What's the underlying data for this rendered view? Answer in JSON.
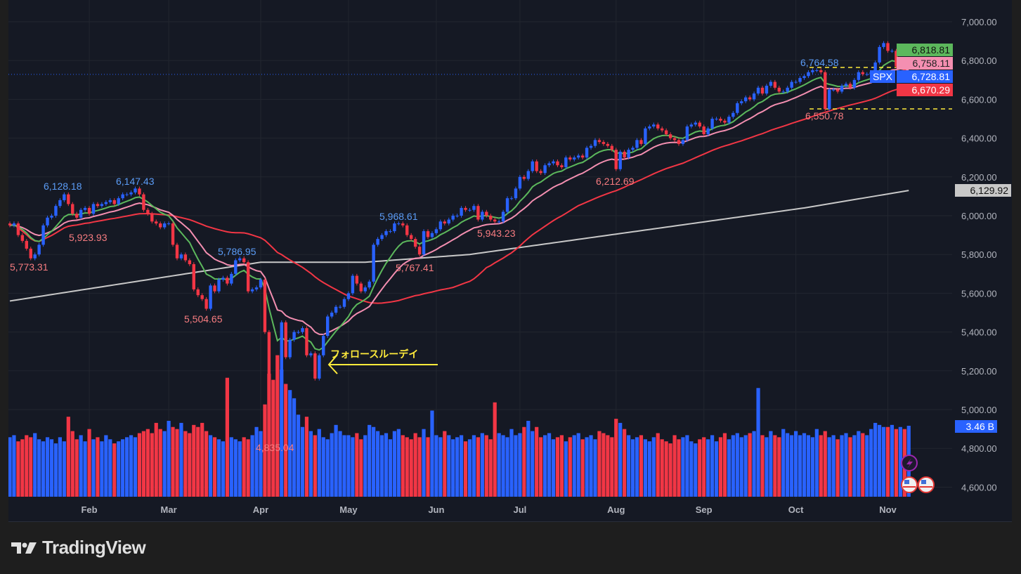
{
  "symbol": "SPX",
  "branding": {
    "logo_text": "TradingView"
  },
  "colors": {
    "up": "#2962ff",
    "down": "#f23645",
    "ema_fast": "#5cb85c",
    "ema_mid": "#f48fb1",
    "ma_mid": "#f23645",
    "ma_long": "#c8c8c8",
    "annotation": "#ffeb3b",
    "background": "#151924"
  },
  "chart_data": {
    "type": "candlestick",
    "price_axis": {
      "ylim": [
        4560,
        7080
      ],
      "ticks": [
        "7,000.00",
        "6,800.00",
        "6,600.00",
        "6,400.00",
        "6,200.00",
        "6,000.00",
        "5,800.00",
        "5,600.00",
        "5,400.00",
        "5,200.00",
        "5,000.00",
        "4,800.00",
        "4,600.00"
      ],
      "tick_values": [
        7000,
        6800,
        6600,
        6400,
        6200,
        6000,
        5800,
        5600,
        5400,
        5200,
        5000,
        4800,
        4600
      ]
    },
    "x_axis": {
      "months": [
        {
          "label": "Feb",
          "index": 19
        },
        {
          "label": "Mar",
          "index": 38
        },
        {
          "label": "Apr",
          "index": 60
        },
        {
          "label": "May",
          "index": 81
        },
        {
          "label": "Jun",
          "index": 102
        },
        {
          "label": "Jul",
          "index": 122
        },
        {
          "label": "Aug",
          "index": 145
        },
        {
          "label": "Sep",
          "index": 166
        },
        {
          "label": "Oct",
          "index": 188
        },
        {
          "label": "Nov",
          "index": 210
        }
      ]
    },
    "grid": true,
    "closes": [
      5950,
      5960,
      5900,
      5870,
      5830,
      5780,
      5800,
      5850,
      5950,
      5990,
      6000,
      6050,
      6080,
      6110,
      6060,
      6010,
      5990,
      6030,
      6040,
      6010,
      6060,
      6050,
      6060,
      6070,
      6080,
      6060,
      6090,
      6110,
      6110,
      6120,
      6140,
      6110,
      6030,
      6010,
      5970,
      5960,
      5940,
      5960,
      5960,
      5850,
      5780,
      5800,
      5770,
      5750,
      5620,
      5590,
      5570,
      5520,
      5640,
      5610,
      5670,
      5680,
      5650,
      5700,
      5770,
      5780,
      5760,
      5610,
      5620,
      5630,
      5670,
      5400,
      5070,
      5060,
      4980,
      5450,
      5270,
      5360,
      5400,
      5400,
      5420,
      5280,
      5290,
      5160,
      5280,
      5380,
      5480,
      5500,
      5530,
      5530,
      5570,
      5600,
      5690,
      5650,
      5610,
      5630,
      5660,
      5850,
      5880,
      5900,
      5920,
      5920,
      5960,
      5960,
      5950,
      5900,
      5880,
      5840,
      5800,
      5920,
      5890,
      5910,
      5930,
      5970,
      5960,
      5980,
      6000,
      6000,
      6040,
      6030,
      6030,
      6050,
      5980,
      6020,
      6000,
      5980,
      5970,
      5970,
      6020,
      6090,
      6090,
      6140,
      6200,
      6190,
      6230,
      6280,
      6230,
      6220,
      6260,
      6270,
      6280,
      6260,
      6250,
      6300,
      6290,
      6300,
      6310,
      6300,
      6350,
      6360,
      6390,
      6380,
      6370,
      6360,
      6340,
      6240,
      6330,
      6300,
      6340,
      6350,
      6390,
      6370,
      6450,
      6460,
      6470,
      6450,
      6440,
      6420,
      6400,
      6390,
      6370,
      6390,
      6460,
      6470,
      6480,
      6460,
      6420,
      6450,
      6500,
      6500,
      6490,
      6480,
      6510,
      6530,
      6580,
      6590,
      6610,
      6600,
      6630,
      6660,
      6630,
      6670,
      6690,
      6660,
      6640,
      6640,
      6660,
      6690,
      6690,
      6710,
      6720,
      6740,
      6750,
      6750,
      6740,
      6550,
      6650,
      6650,
      6640,
      6670,
      6680,
      6660,
      6700,
      6740,
      6730,
      6730,
      6740,
      6790,
      6870,
      6890,
      6850,
      6850,
      6770,
      6800,
      6720,
      6728.81
    ],
    "volumes_billions": [
      2.9,
      3.0,
      2.7,
      2.8,
      3.0,
      2.9,
      3.1,
      2.8,
      2.7,
      2.9,
      2.8,
      2.6,
      2.9,
      2.7,
      3.9,
      3.2,
      2.8,
      3.0,
      2.7,
      3.3,
      2.8,
      2.9,
      2.7,
      3.0,
      2.8,
      2.6,
      2.7,
      2.8,
      2.9,
      3.0,
      2.9,
      3.1,
      3.2,
      3.3,
      3.1,
      3.6,
      3.3,
      3.2,
      3.7,
      3.4,
      3.3,
      3.6,
      3.2,
      3.1,
      3.5,
      3.4,
      3.6,
      3.2,
      3.0,
      2.9,
      2.8,
      2.7,
      5.8,
      2.9,
      2.8,
      2.7,
      2.9,
      2.8,
      3.0,
      3.4,
      3.2,
      4.5,
      6.0,
      5.7,
      6.9,
      6.2,
      5.5,
      5.2,
      4.8,
      4.0,
      3.4,
      3.9,
      3.2,
      3.0,
      3.3,
      2.9,
      2.8,
      3.1,
      3.5,
      3.2,
      3.0,
      3.0,
      2.9,
      3.1,
      2.8,
      3.0,
      3.5,
      3.4,
      3.2,
      3.0,
      3.1,
      2.8,
      3.2,
      3.3,
      3.0,
      2.9,
      2.8,
      3.1,
      2.9,
      3.3,
      2.9,
      4.2,
      3.0,
      2.9,
      3.2,
      3.0,
      2.8,
      2.9,
      3.0,
      2.7,
      2.8,
      3.0,
      2.9,
      3.1,
      3.0,
      2.8,
      4.6,
      3.1,
      3.0,
      2.9,
      3.3,
      3.0,
      3.1,
      3.4,
      3.7,
      3.2,
      3.4,
      2.9,
      3.0,
      3.1,
      2.8,
      2.9,
      3.0,
      2.7,
      2.9,
      3.0,
      3.1,
      2.8,
      2.9,
      3.0,
      2.8,
      3.2,
      3.1,
      3.0,
      2.9,
      3.8,
      3.6,
      3.3,
      3.0,
      2.8,
      2.9,
      3.0,
      2.8,
      2.7,
      2.9,
      3.1,
      2.8,
      2.7,
      2.6,
      3.0,
      2.8,
      2.9,
      3.0,
      2.7,
      2.6,
      2.8,
      2.9,
      2.8,
      3.0,
      2.7,
      2.9,
      3.1,
      2.8,
      3.0,
      3.1,
      2.9,
      3.0,
      3.1,
      3.2,
      5.3,
      3.0,
      2.9,
      3.2,
      3.0,
      2.9,
      3.3,
      3.1,
      3.0,
      3.2,
      3.0,
      3.1,
      3.0,
      2.9,
      3.3,
      3.0,
      3.2,
      2.9,
      3.0,
      2.8,
      3.0,
      3.1,
      2.9,
      3.0,
      3.2,
      3.1,
      3.0,
      3.3,
      3.6,
      3.5,
      3.4,
      3.4,
      3.5,
      3.3,
      3.4,
      3.3,
      3.46
    ],
    "ma200_points": [
      [
        0,
        5560
      ],
      [
        60,
        5760
      ],
      [
        85,
        5760
      ],
      [
        110,
        5800
      ],
      [
        150,
        5920
      ],
      [
        190,
        6040
      ],
      [
        215,
        6130
      ]
    ],
    "price_labels": [
      {
        "text": "5,773.31",
        "kind": "low"
      },
      {
        "text": "6,128.18",
        "kind": "high"
      },
      {
        "text": "5,923.93",
        "kind": "low"
      },
      {
        "text": "6,147.43",
        "kind": "high"
      },
      {
        "text": "5,504.65",
        "kind": "low"
      },
      {
        "text": "5,786.95",
        "kind": "high"
      },
      {
        "text": "4,835.04",
        "kind": "low"
      },
      {
        "text": "5,968.61",
        "kind": "high"
      },
      {
        "text": "5,767.41",
        "kind": "low"
      },
      {
        "text": "5,943.23",
        "kind": "low"
      },
      {
        "text": "6,212.69",
        "kind": "low"
      },
      {
        "text": "6,764.58",
        "kind": "high"
      },
      {
        "text": "6,550.78",
        "kind": "low"
      }
    ],
    "horizontal_lines": [
      6764.58,
      6550.78
    ],
    "current_price": 6728.81,
    "annotation": {
      "text": "フォロースルーデイ"
    },
    "axis_tags": {
      "ema_fast": "6,818.81",
      "ema_mid": "6,758.11",
      "price": "6,728.81",
      "ma_mid": "6,670.29",
      "ma_long": "6,129.92",
      "volume": "3.46 B"
    }
  }
}
